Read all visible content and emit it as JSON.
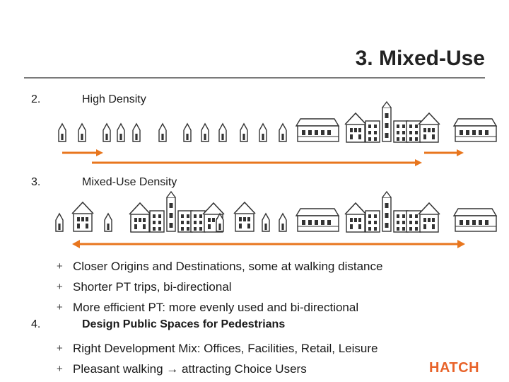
{
  "slide": {
    "title": "3. Mixed-Use",
    "logo": "HATCH"
  },
  "sections": [
    {
      "number": "2.",
      "label": "High Density"
    },
    {
      "number": "3.",
      "label": "Mixed-Use Density"
    },
    {
      "number": "4.",
      "label": "Design Public Spaces for Pedestrians"
    }
  ],
  "bullets_a": [
    {
      "icon": "plus-bullet-icon",
      "text": "Closer Origins and Destinations, some at walking distance"
    },
    {
      "icon": "plus-bullet-icon",
      "text": "Shorter PT trips, bi-directional"
    },
    {
      "icon": "plus-bullet-icon",
      "text": "More efficient PT: more evenly used and bi-directional"
    }
  ],
  "bullets_b": [
    {
      "icon": "plus-bullet-icon",
      "text": "Right Development Mix: Offices, Facilities, Retail, Leisure"
    },
    {
      "icon": "plus-bullet-icon",
      "text": "Pleasant walking → attracting Choice Users"
    }
  ],
  "colors": {
    "accent_orange": "#e8761e",
    "logo_orange": "#e8632a",
    "building_outline": "#333333"
  }
}
